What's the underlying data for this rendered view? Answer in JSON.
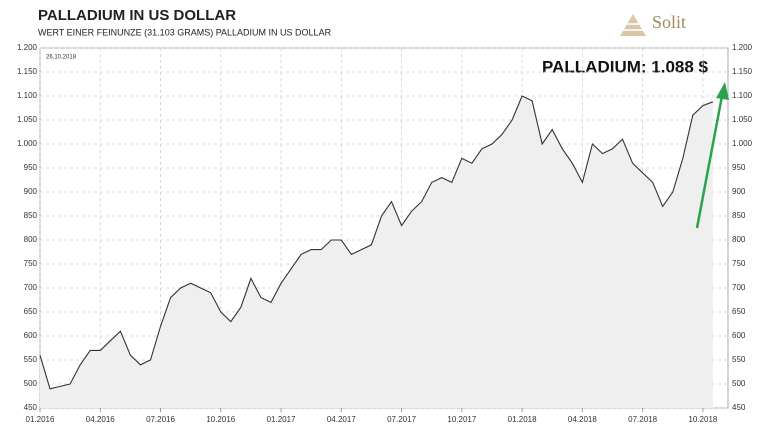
{
  "chart_data": {
    "type": "line",
    "title": "PALLADIUM  IN  US DOLLAR",
    "subtitle": "WERT EINER FEINUNZE (31.103 GRAMS) PALLADIUM IN US DOLLAR",
    "date_label": "26.10.2018",
    "annotation": "PALLADIUM: 1.088 $",
    "brand": "Solit",
    "categories": [
      "01.2016",
      null,
      null,
      null,
      null,
      null,
      "04.2016",
      null,
      null,
      null,
      null,
      null,
      "07.2016",
      null,
      null,
      null,
      null,
      null,
      "10.2016",
      null,
      null,
      null,
      null,
      null,
      "01.2017",
      null,
      null,
      null,
      null,
      null,
      "04.2017",
      null,
      null,
      null,
      null,
      null,
      "07.2017",
      null,
      null,
      null,
      null,
      null,
      "10.2017",
      null,
      null,
      null,
      null,
      null,
      "01.2018",
      null,
      null,
      null,
      null,
      null,
      "04.2018",
      null,
      null,
      null,
      null,
      null,
      "07.2018",
      null,
      null,
      null,
      null,
      null,
      "10.2018",
      null
    ],
    "series": [
      {
        "name": "Palladium",
        "color": "#333333",
        "values": [
          560,
          490,
          495,
          500,
          540,
          570,
          570,
          590,
          610,
          560,
          540,
          550,
          620,
          680,
          700,
          710,
          700,
          690,
          650,
          630,
          660,
          720,
          680,
          670,
          710,
          740,
          770,
          780,
          780,
          800,
          800,
          770,
          780,
          790,
          850,
          880,
          830,
          860,
          880,
          920,
          930,
          920,
          970,
          960,
          990,
          1000,
          1020,
          1050,
          1100,
          1090,
          1000,
          1030,
          990,
          960,
          920,
          1000,
          980,
          990,
          1010,
          960,
          940,
          920,
          870,
          900,
          970,
          1060,
          1080,
          1088
        ]
      }
    ],
    "ylim": [
      450,
      1200
    ],
    "yticks": [
      450,
      500,
      550,
      600,
      650,
      700,
      750,
      800,
      850,
      900,
      950,
      {
        "value": 1000,
        "label": "1.000"
      },
      {
        "value": 1050,
        "label": "1.050"
      },
      {
        "value": 1100,
        "label": "1.100"
      },
      {
        "value": 1150,
        "label": "1.150"
      },
      {
        "value": 1200,
        "label": "1.200"
      }
    ],
    "grid": true
  }
}
